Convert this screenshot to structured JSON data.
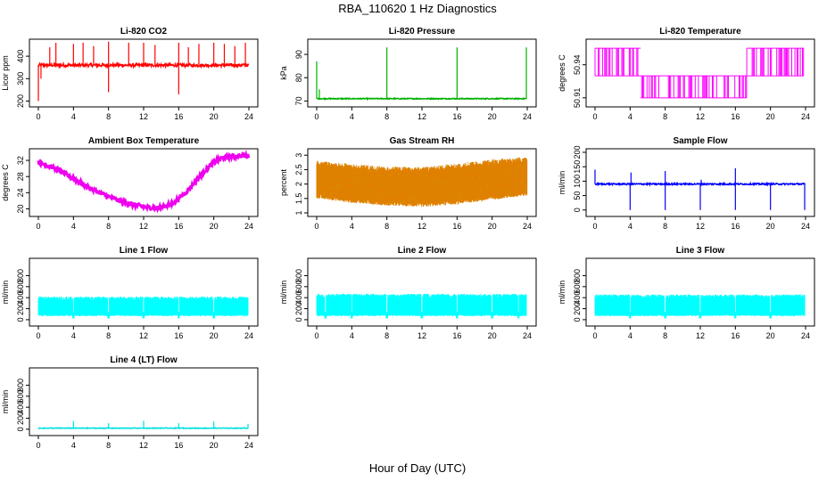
{
  "title": "RBA_110620  1 Hz Diagnostics",
  "x_axis_title": "Hour of Day (UTC)",
  "chart_data": [
    {
      "type": "line",
      "title": "Li-820 CO2",
      "ylabel": "Licor ppm",
      "color": "#ff0000",
      "xlim": [
        0,
        24
      ],
      "ylim": [
        190,
        460
      ],
      "xticks": [
        0,
        4,
        8,
        12,
        16,
        20,
        24
      ],
      "yticks": [
        200,
        300,
        400
      ],
      "baseline": 360,
      "noise": 14,
      "spikes": [
        {
          "x": 0.0,
          "y": 200
        },
        {
          "x": 0.3,
          "y": 300
        },
        {
          "x": 1.3,
          "y": 440
        },
        {
          "x": 2.0,
          "y": 460
        },
        {
          "x": 4.0,
          "y": 455
        },
        {
          "x": 5.1,
          "y": 460
        },
        {
          "x": 6.3,
          "y": 445
        },
        {
          "x": 8.0,
          "y": 465
        },
        {
          "x": 8.0,
          "y": 240
        },
        {
          "x": 10.3,
          "y": 460
        },
        {
          "x": 12.0,
          "y": 460
        },
        {
          "x": 13.3,
          "y": 450
        },
        {
          "x": 16.0,
          "y": 460
        },
        {
          "x": 16.0,
          "y": 230
        },
        {
          "x": 17.1,
          "y": 440
        },
        {
          "x": 18.3,
          "y": 455
        },
        {
          "x": 20.0,
          "y": 460
        },
        {
          "x": 21.2,
          "y": 455
        },
        {
          "x": 22.4,
          "y": 445
        },
        {
          "x": 23.6,
          "y": 460
        }
      ]
    },
    {
      "type": "line",
      "title": "Li-820 Pressure",
      "ylabel": "kPa",
      "color": "#00b000",
      "xlim": [
        0,
        24
      ],
      "ylim": [
        69,
        95
      ],
      "xticks": [
        0,
        4,
        8,
        12,
        16,
        20,
        24
      ],
      "yticks": [
        70,
        80,
        90
      ],
      "baseline": 71,
      "noise": 0.4,
      "spikes": [
        {
          "x": 0.0,
          "y": 87
        },
        {
          "x": 0.3,
          "y": 75
        },
        {
          "x": 8.0,
          "y": 93
        },
        {
          "x": 16.0,
          "y": 93
        },
        {
          "x": 23.9,
          "y": 93
        }
      ]
    },
    {
      "type": "step",
      "title": "Li-820 Temperature",
      "ylabel": "degrees C",
      "color": "#ff00ff",
      "xlim": [
        0,
        24
      ],
      "ylim": [
        50.905,
        50.96
      ],
      "xticks": [
        0,
        4,
        8,
        12,
        16,
        20,
        24
      ],
      "yticks": [
        50.91,
        50.94
      ],
      "levels": [
        50.91,
        50.93,
        50.955
      ],
      "segments": [
        {
          "from": 0.0,
          "to": 5.2,
          "low": 50.93,
          "high": 50.955
        },
        {
          "from": 5.2,
          "to": 17.3,
          "low": 50.91,
          "high": 50.93
        },
        {
          "from": 17.3,
          "to": 23.8,
          "low": 50.93,
          "high": 50.955
        }
      ]
    },
    {
      "type": "line",
      "title": "Ambient Box Temperature",
      "ylabel": "degrees C",
      "color": "#ee00ee",
      "xlim": [
        0,
        24
      ],
      "ylim": [
        19,
        34
      ],
      "xticks": [
        0,
        4,
        8,
        12,
        16,
        20,
        24
      ],
      "yticks": [
        20,
        24,
        28,
        32
      ],
      "x": [
        0,
        2,
        4,
        6,
        8,
        10,
        12,
        13.5,
        15,
        16,
        17,
        18,
        19,
        20,
        21,
        22,
        23,
        24
      ],
      "y": [
        31.5,
        30.0,
        27.5,
        25.0,
        23.0,
        21.5,
        20.5,
        20.2,
        21.0,
        22.5,
        24.5,
        27.0,
        29.5,
        31.5,
        32.6,
        33.0,
        33.1,
        33.1
      ],
      "noise": 0.5
    },
    {
      "type": "line",
      "title": "Gas Stream RH",
      "ylabel": "percent",
      "color": "#e08000",
      "color2": "#c0a000",
      "xlim": [
        0,
        24
      ],
      "ylim": [
        1.0,
        3.1
      ],
      "xticks": [
        0,
        4,
        8,
        12,
        16,
        20,
        24
      ],
      "yticks": [
        1.0,
        1.5,
        2.0,
        2.5,
        3.0
      ],
      "x": [
        0,
        4,
        8,
        12,
        16,
        20,
        24
      ],
      "low": [
        1.5,
        1.35,
        1.25,
        1.2,
        1.3,
        1.45,
        1.6
      ],
      "high": [
        2.8,
        2.7,
        2.6,
        2.6,
        2.7,
        2.85,
        2.95
      ]
    },
    {
      "type": "line",
      "title": "Sample Flow",
      "ylabel": "ml/min",
      "color": "#0000ff",
      "xlim": [
        0,
        24
      ],
      "ylim": [
        -10,
        200
      ],
      "xticks": [
        0,
        4,
        8,
        12,
        16,
        20,
        24
      ],
      "yticks": [
        0,
        50,
        100,
        150,
        200
      ],
      "baseline": 90,
      "noise": 5,
      "spikes": [
        {
          "x": 0.0,
          "y": 140
        },
        {
          "x": 4.0,
          "y": 0
        },
        {
          "x": 4.1,
          "y": 130
        },
        {
          "x": 8.0,
          "y": 0
        },
        {
          "x": 8.0,
          "y": 135
        },
        {
          "x": 12.0,
          "y": 0
        },
        {
          "x": 12.1,
          "y": 105
        },
        {
          "x": 16.0,
          "y": 0
        },
        {
          "x": 16.0,
          "y": 145
        },
        {
          "x": 20.0,
          "y": 0
        },
        {
          "x": 23.9,
          "y": 0
        }
      ]
    },
    {
      "type": "area",
      "title": "Line 1 Flow",
      "ylabel": "ml/min",
      "color": "#00ffff",
      "xlim": [
        0,
        24
      ],
      "ylim": [
        -50,
        1050
      ],
      "xticks": [
        0,
        4,
        8,
        12,
        16,
        20,
        24
      ],
      "yticks": [
        0,
        200,
        400,
        600,
        800
      ],
      "low": 80,
      "high": 420,
      "gaps": [
        4,
        8,
        12,
        16,
        20
      ]
    },
    {
      "type": "area",
      "title": "Line 2 Flow",
      "ylabel": "ml/min",
      "color": "#00ffff",
      "xlim": [
        0,
        24
      ],
      "ylim": [
        -50,
        1050
      ],
      "xticks": [
        0,
        4,
        8,
        12,
        16,
        20,
        24
      ],
      "yticks": [
        0,
        200,
        400,
        600,
        800
      ],
      "low": 80,
      "high": 470,
      "gaps": [
        1,
        4,
        8,
        12,
        16,
        20,
        23
      ]
    },
    {
      "type": "area",
      "title": "Line 3 Flow",
      "ylabel": "ml/min",
      "color": "#00ffff",
      "xlim": [
        0,
        24
      ],
      "ylim": [
        -50,
        1050
      ],
      "xticks": [
        0,
        4,
        8,
        12,
        16,
        20,
        24
      ],
      "yticks": [
        0,
        200,
        400,
        600,
        800
      ],
      "low": 80,
      "high": 460,
      "gaps": [
        4,
        8,
        12,
        16,
        20
      ]
    },
    {
      "type": "line",
      "title": "Line 4 (LT) Flow",
      "ylabel": "ml/min",
      "color": "#00e0e0",
      "xlim": [
        0,
        24
      ],
      "ylim": [
        -50,
        1050
      ],
      "xticks": [
        0,
        4,
        8,
        12,
        16,
        20,
        24
      ],
      "yticks": [
        0,
        200,
        400,
        600,
        800
      ],
      "baseline": 20,
      "noise": 12,
      "spikes": [
        {
          "x": 4.0,
          "y": 150
        },
        {
          "x": 8.0,
          "y": 110
        },
        {
          "x": 12.0,
          "y": 155
        },
        {
          "x": 16.0,
          "y": 110
        },
        {
          "x": 20.0,
          "y": 140
        },
        {
          "x": 23.9,
          "y": 100
        }
      ]
    }
  ]
}
